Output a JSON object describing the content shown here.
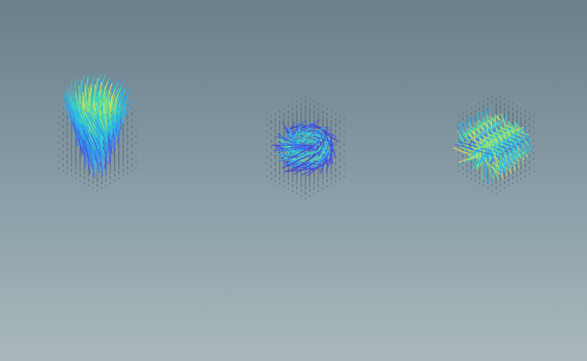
{
  "scene": {
    "background": {
      "top": "#6a7f8c",
      "middle": "#8a9fa9",
      "bottom": "#aab8bb"
    },
    "point_color": "#4a5358",
    "colormap": [
      "#3b1ea0",
      "#4a3fd8",
      "#3a7bf0",
      "#2ab8e8",
      "#2fd9c4",
      "#8ae07a",
      "#f2e34a"
    ],
    "panels": [
      {
        "name": "vector-field-panel-left",
        "field": "swirl-funnel"
      },
      {
        "name": "vector-field-panel-center",
        "field": "vortex-ring"
      },
      {
        "name": "vector-field-panel-right",
        "field": "double-roll"
      }
    ]
  }
}
